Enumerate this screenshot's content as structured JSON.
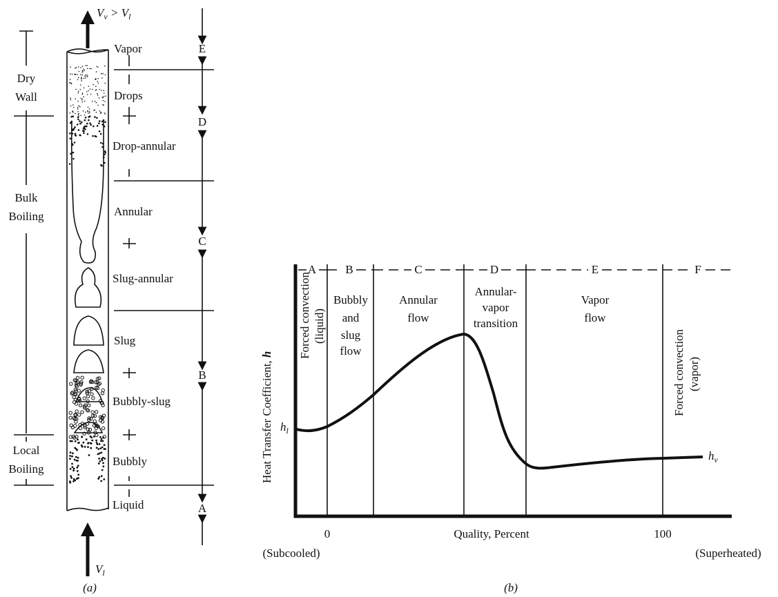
{
  "panel_a": {
    "top_velocity": [
      "V",
      "v",
      " > V",
      "l"
    ],
    "bottom_velocity": [
      "V",
      "l"
    ],
    "regimes": [
      "Vapor",
      "Drops",
      "Drop-annular",
      "Annular",
      "Slug-annular",
      "Slug",
      "Bubbly-slug",
      "Bubbly",
      "Liquid"
    ],
    "zones": [
      "E",
      "D",
      "C",
      "B",
      "A"
    ],
    "wall_states": [
      [
        "Dry",
        "Wall"
      ],
      [
        "Bulk",
        "Boiling"
      ],
      [
        "Local",
        "Boiling"
      ]
    ],
    "caption": "(a)"
  },
  "panel_b": {
    "y_label": [
      "Heat Transfer Coefficient, ",
      "h"
    ],
    "x_label": "Quality, Percent",
    "x_ticks": [
      "0",
      "100"
    ],
    "x_end_labels": [
      "(Subcooled)",
      "(Superheated)"
    ],
    "h_start": [
      "h",
      "l"
    ],
    "h_end": [
      "h",
      "v"
    ],
    "regions": [
      {
        "letter": "A",
        "label": [
          "Forced convection",
          "(liquid)"
        ]
      },
      {
        "letter": "B",
        "label": [
          "Bubbly",
          "and",
          "slug",
          "flow"
        ]
      },
      {
        "letter": "C",
        "label": [
          "Annular",
          "flow"
        ]
      },
      {
        "letter": "D",
        "label": [
          "Annular-",
          "vapor",
          "transition"
        ]
      },
      {
        "letter": "E",
        "label": [
          "Vapor",
          "flow"
        ]
      },
      {
        "letter": "F",
        "label": [
          "Forced convection",
          "(vapor)"
        ]
      }
    ],
    "caption": "(b)"
  }
}
